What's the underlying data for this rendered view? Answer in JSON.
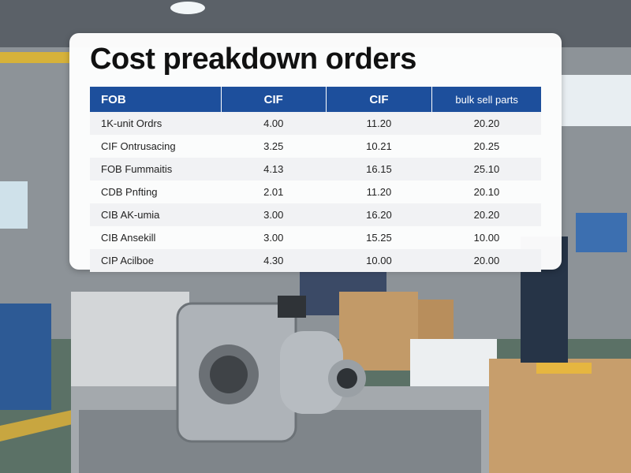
{
  "header": {
    "title": "Cost preakdown orders"
  },
  "table": {
    "columns": [
      "FOB",
      "CIF",
      "CIF",
      "bulk sell parts"
    ],
    "rows": [
      [
        "1K-unit Ordrs",
        "4.00",
        "11.20",
        "20.20"
      ],
      [
        "CIF Ontrusacing",
        "3.25",
        "10.21",
        "20.25"
      ],
      [
        "FOB Fummaitis",
        "4.13",
        "16.15",
        "25.10"
      ],
      [
        "CDB Pnfting",
        "2.01",
        "11.20",
        "20.10"
      ],
      [
        "CIB AK-umia",
        "3.00",
        "16.20",
        "20.20"
      ],
      [
        "CIB Ansekill",
        "3.00",
        "15.25",
        "10.00"
      ],
      [
        "CIP Acilboe",
        "4.30",
        "10.00",
        "20.00"
      ]
    ]
  }
}
